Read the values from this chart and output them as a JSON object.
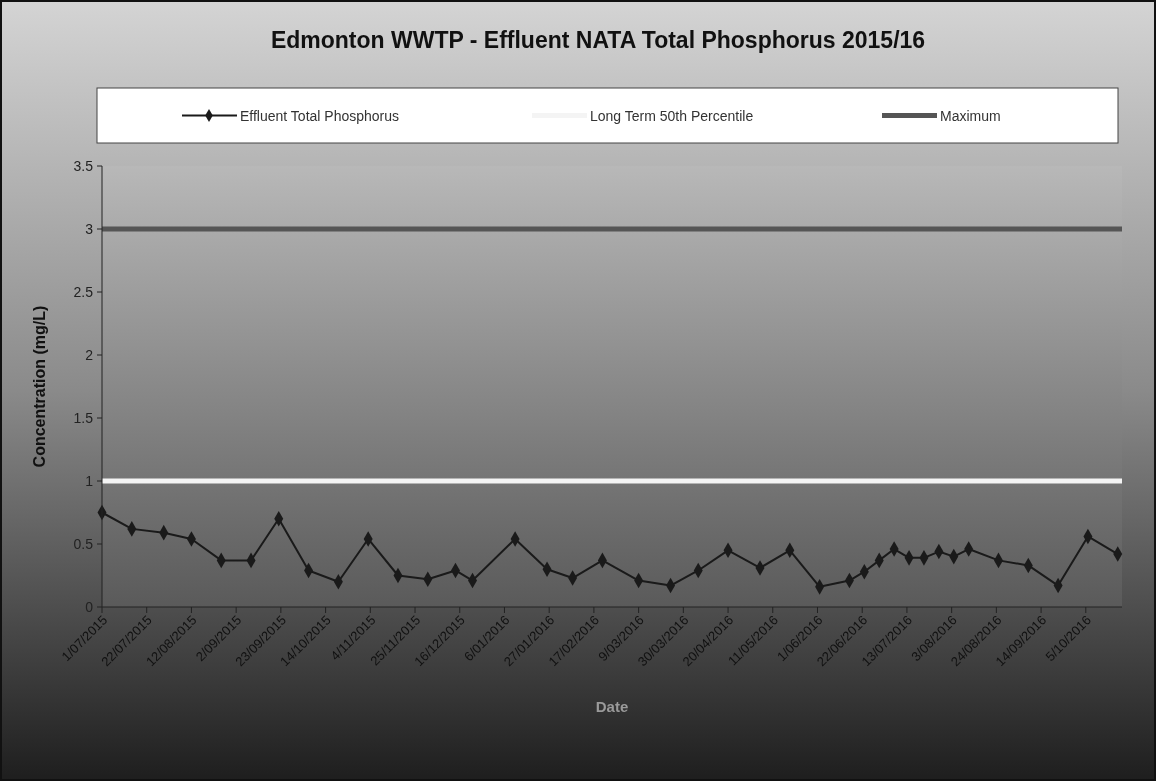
{
  "chart_data": {
    "type": "line",
    "title": "Edmonton WWTP - Effluent NATA Total Phosphorus 2015/16",
    "xlabel": "Date",
    "ylabel": "Concentration (mg/L)",
    "x": [
      "2015-07-01",
      "2015-07-15",
      "2015-07-30",
      "2015-08-12",
      "2015-08-26",
      "2015-09-09",
      "2015-09-22",
      "2015-10-06",
      "2015-10-20",
      "2015-11-03",
      "2015-11-17",
      "2015-12-01",
      "2015-12-14",
      "2015-12-22",
      "2016-01-11",
      "2016-01-26",
      "2016-02-07",
      "2016-02-21",
      "2016-03-09",
      "2016-03-24",
      "2016-04-06",
      "2016-04-20",
      "2016-05-05",
      "2016-05-19",
      "2016-06-02",
      "2016-06-16",
      "2016-06-23",
      "2016-06-30",
      "2016-07-07",
      "2016-07-14",
      "2016-07-21",
      "2016-07-28",
      "2016-08-04",
      "2016-08-11",
      "2016-08-25",
      "2016-09-08",
      "2016-09-22",
      "2016-10-06",
      "2016-10-20"
    ],
    "series": [
      {
        "name": "Effluent Total Phosphorus",
        "color": "#1a1a1a",
        "values": [
          0.75,
          0.62,
          0.59,
          0.54,
          0.37,
          0.37,
          0.7,
          0.29,
          0.2,
          0.54,
          0.25,
          0.22,
          0.29,
          0.21,
          0.54,
          0.3,
          0.23,
          0.37,
          0.21,
          0.17,
          0.29,
          0.45,
          0.31,
          0.45,
          0.16,
          0.21,
          0.28,
          0.37,
          0.46,
          0.39,
          0.39,
          0.44,
          0.4,
          0.46,
          0.37,
          0.33,
          0.17,
          0.56,
          0.42
        ]
      }
    ],
    "ref_lines": [
      {
        "axis": "y",
        "value": 1,
        "label": "Long Term 50th Percentile",
        "color": "#f4f4f4"
      },
      {
        "axis": "y",
        "value": 3,
        "label": "Maximum",
        "color": "#555555"
      }
    ],
    "marker": "diamond",
    "legend": "top",
    "grid": false,
    "xlim": [
      "2015-07-01",
      "2016-10-22"
    ],
    "xticks": [
      {
        "value": "2015-07-01",
        "label": "1/07/2015"
      },
      {
        "value": "2015-07-22",
        "label": "22/07/2015"
      },
      {
        "value": "2015-08-12",
        "label": "12/08/2015"
      },
      {
        "value": "2015-09-02",
        "label": "2/09/2015"
      },
      {
        "value": "2015-09-23",
        "label": "23/09/2015"
      },
      {
        "value": "2015-10-14",
        "label": "14/10/2015"
      },
      {
        "value": "2015-11-04",
        "label": "4/11/2015"
      },
      {
        "value": "2015-11-25",
        "label": "25/11/2015"
      },
      {
        "value": "2015-12-16",
        "label": "16/12/2015"
      },
      {
        "value": "2016-01-06",
        "label": "6/01/2016"
      },
      {
        "value": "2016-01-27",
        "label": "27/01/2016"
      },
      {
        "value": "2016-02-17",
        "label": "17/02/2016"
      },
      {
        "value": "2016-03-09",
        "label": "9/03/2016"
      },
      {
        "value": "2016-03-30",
        "label": "30/03/2016"
      },
      {
        "value": "2016-04-20",
        "label": "20/04/2016"
      },
      {
        "value": "2016-05-11",
        "label": "11/05/2016"
      },
      {
        "value": "2016-06-01",
        "label": "1/06/2016"
      },
      {
        "value": "2016-06-22",
        "label": "22/06/2016"
      },
      {
        "value": "2016-07-13",
        "label": "13/07/2016"
      },
      {
        "value": "2016-08-03",
        "label": "3/08/2016"
      },
      {
        "value": "2016-08-24",
        "label": "24/08/2016"
      },
      {
        "value": "2016-09-14",
        "label": "14/09/2016"
      },
      {
        "value": "2016-10-05",
        "label": "5/10/2016"
      }
    ],
    "ylim": [
      0,
      3.5
    ],
    "yticks": [
      0,
      0.5,
      1,
      1.5,
      2,
      2.5,
      3,
      3.5
    ]
  }
}
